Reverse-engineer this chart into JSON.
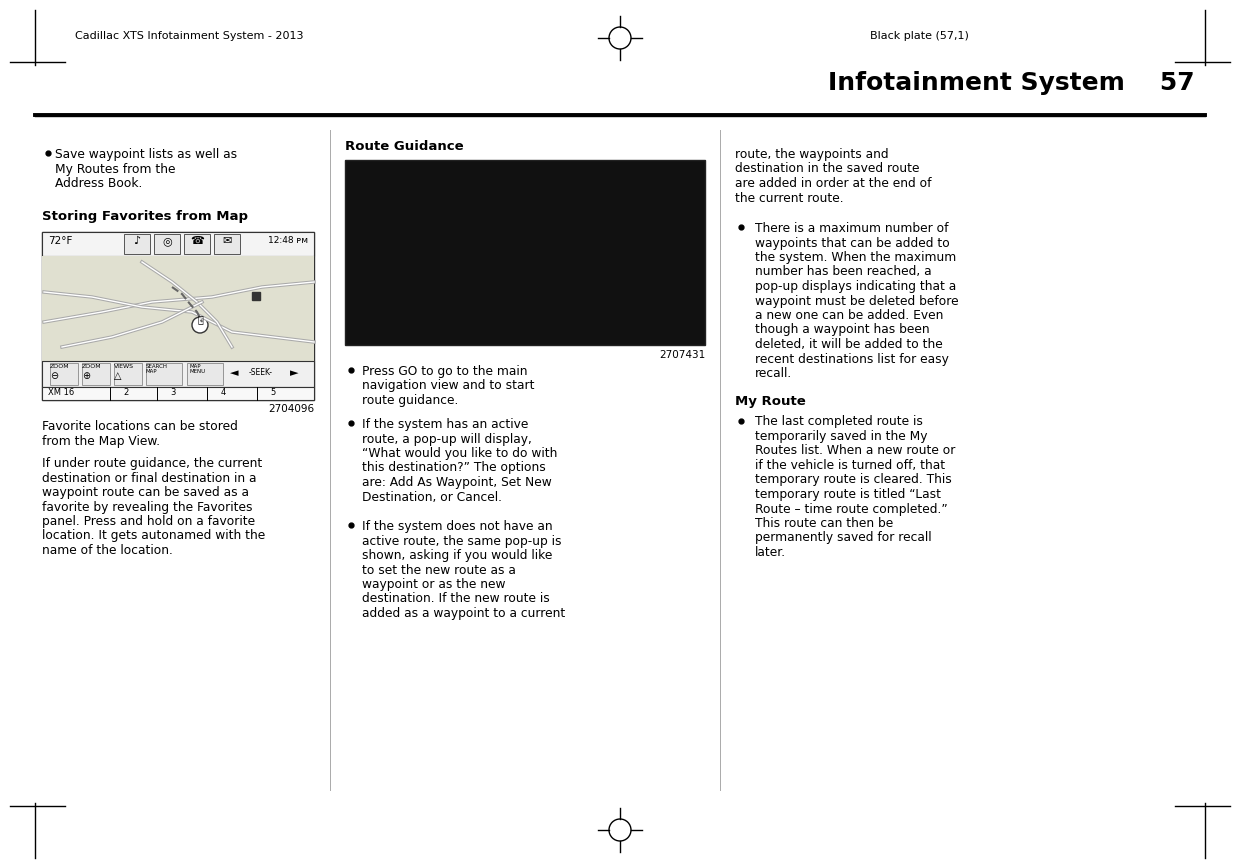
{
  "bg_color": "#ffffff",
  "text_color": "#000000",
  "header_left": "Cadillac XTS Infotainment System - 2013",
  "header_right": "Black plate (57,1)",
  "title": "Infotainment System",
  "page_number": "57",
  "col1_bullet1_line1": "Save waypoint lists as well as",
  "col1_bullet1_line2": "My Routes from the",
  "col1_bullet1_line3": "Address Book.",
  "col1_heading1": "Storing Favorites from Map",
  "col1_fig_number": "2704096",
  "col1_para1_line1": "Favorite locations can be stored",
  "col1_para1_line2": "from the Map View.",
  "col1_para2_line1": "If under route guidance, the current",
  "col1_para2_line2": "destination or final destination in a",
  "col1_para2_line3": "waypoint route can be saved as a",
  "col1_para2_line4": "favorite by revealing the Favorites",
  "col1_para2_line5": "panel. Press and hold on a favorite",
  "col1_para2_line6": "location. It gets autonamed with the",
  "col1_para2_line7": "name of the location.",
  "col2_heading1": "Route Guidance",
  "col2_fig_number": "2707431",
  "col2_b1_l1": "Press GO to go to the main",
  "col2_b1_l2": "navigation view and to start",
  "col2_b1_l3": "route guidance.",
  "col2_b2_l1": "If the system has an active",
  "col2_b2_l2": "route, a pop-up will display,",
  "col2_b2_l3": "“What would you like to do with",
  "col2_b2_l4": "this destination?” The options",
  "col2_b2_l5": "are: Add As Waypoint, Set New",
  "col2_b2_l6": "Destination, or Cancel.",
  "col2_b3_l1": "If the system does not have an",
  "col2_b3_l2": "active route, the same pop-up is",
  "col2_b3_l3": "shown, asking if you would like",
  "col2_b3_l4": "to set the new route as a",
  "col2_b3_l5": "waypoint or as the new",
  "col2_b3_l6": "destination. If the new route is",
  "col2_b3_l7": "added as a waypoint to a current",
  "col3_p1_l1": "route, the waypoints and",
  "col3_p1_l2": "destination in the saved route",
  "col3_p1_l3": "are added in order at the end of",
  "col3_p1_l4": "the current route.",
  "col3_b1_l1": "There is a maximum number of",
  "col3_b1_l2": "waypoints that can be added to",
  "col3_b1_l3": "the system. When the maximum",
  "col3_b1_l4": "number has been reached, a",
  "col3_b1_l5": "pop-up displays indicating that a",
  "col3_b1_l6": "waypoint must be deleted before",
  "col3_b1_l7": "a new one can be added. Even",
  "col3_b1_l8": "though a waypoint has been",
  "col3_b1_l9": "deleted, it will be added to the",
  "col3_b1_l10": "recent destinations list for easy",
  "col3_b1_l11": "recall.",
  "col3_heading2": "My Route",
  "col3_b2_l1": "The last completed route is",
  "col3_b2_l2": "temporarily saved in the My",
  "col3_b2_l3": "Routes list. When a new route or",
  "col3_b2_l4": "if the vehicle is turned off, that",
  "col3_b2_l5": "temporary route is cleared. This",
  "col3_b2_l6": "temporary route is titled “Last",
  "col3_b2_l7": "Route – time route completed.”",
  "col3_b2_l8": "This route can then be",
  "col3_b2_l9": "permanently saved for recall",
  "col3_b2_l10": "later.",
  "lh": 14.5
}
